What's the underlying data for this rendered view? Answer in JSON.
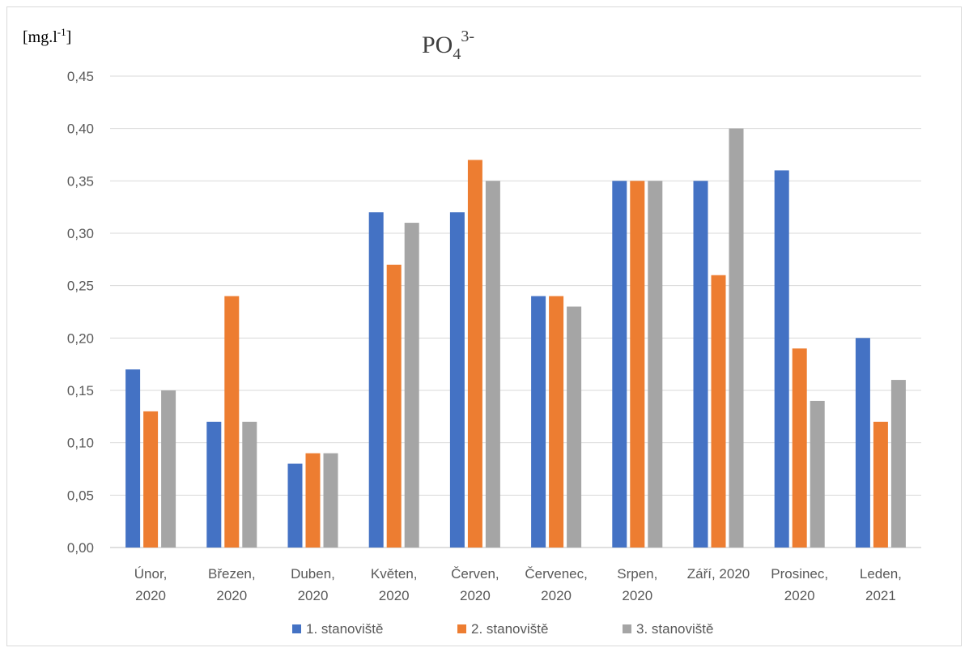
{
  "chart_data": {
    "type": "bar",
    "title_main": "PO",
    "title_sub": "4",
    "title_sup": "3-",
    "ylabel_main": "[mg.l",
    "ylabel_sup": "-1",
    "ylabel_end": "]",
    "ylim": [
      0,
      0.45
    ],
    "yticks": [
      "0,00",
      "0,05",
      "0,10",
      "0,15",
      "0,20",
      "0,25",
      "0,30",
      "0,35",
      "0,40",
      "0,45"
    ],
    "grid": true,
    "legend_position": "bottom",
    "categories": [
      [
        "Únor,",
        "2020"
      ],
      [
        "Březen,",
        "2020"
      ],
      [
        "Duben,",
        "2020"
      ],
      [
        "Květen,",
        "2020"
      ],
      [
        "Červen,",
        "2020"
      ],
      [
        "Červenec,",
        "2020"
      ],
      [
        "Srpen,",
        "2020"
      ],
      [
        "Září, 2020"
      ],
      [
        "Prosinec,",
        "2020"
      ],
      [
        "Leden,",
        "2021"
      ]
    ],
    "series": [
      {
        "name": "1. stanoviště",
        "color": "#4472C4",
        "values": [
          0.17,
          0.12,
          0.08,
          0.32,
          0.32,
          0.24,
          0.35,
          0.35,
          0.36,
          0.2
        ]
      },
      {
        "name": "2. stanoviště",
        "color": "#ED7D31",
        "values": [
          0.13,
          0.24,
          0.09,
          0.27,
          0.37,
          0.24,
          0.35,
          0.26,
          0.19,
          0.12
        ]
      },
      {
        "name": "3. stanoviště",
        "color": "#A5A5A5",
        "values": [
          0.15,
          0.12,
          0.09,
          0.31,
          0.35,
          0.23,
          0.35,
          0.4,
          0.14,
          0.16
        ]
      }
    ]
  }
}
